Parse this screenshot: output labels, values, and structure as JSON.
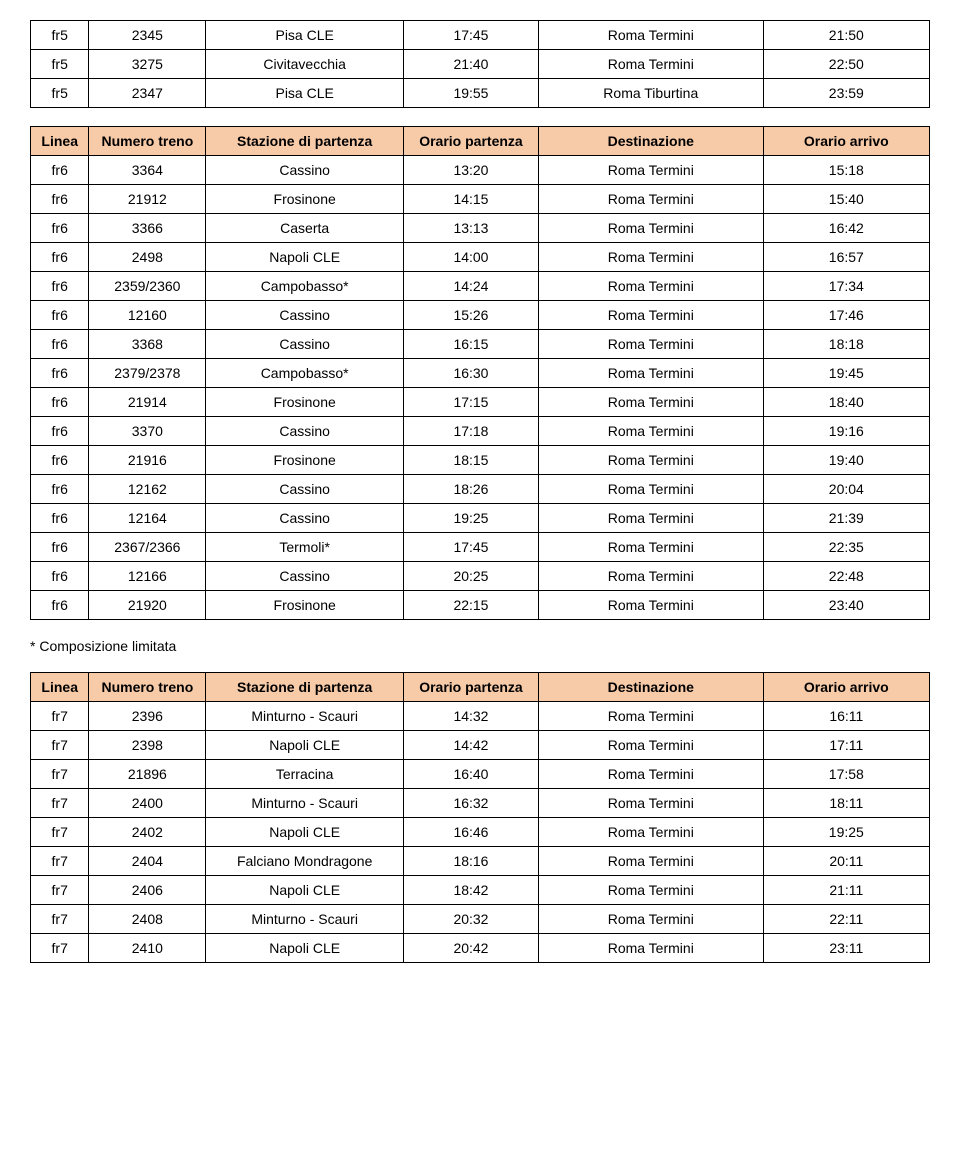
{
  "headers": {
    "linea": "Linea",
    "numero": "Numero treno",
    "stazione": "Stazione di partenza",
    "orario_partenza": "Orario partenza",
    "destinazione": "Destinazione",
    "orario_arrivo": "Orario arrivo"
  },
  "footnote": "* Composizione limitata",
  "colors": {
    "header_bg": "#f7caa8",
    "border": "#000000",
    "text": "#000000",
    "background": "#ffffff"
  },
  "table1_rows": [
    [
      "fr5",
      "2345",
      "Pisa CLE",
      "17:45",
      "Roma Termini",
      "21:50"
    ],
    [
      "fr5",
      "3275",
      "Civitavecchia",
      "21:40",
      "Roma Termini",
      "22:50"
    ],
    [
      "fr5",
      "2347",
      "Pisa CLE",
      "19:55",
      "Roma Tiburtina",
      "23:59"
    ]
  ],
  "table2_rows": [
    [
      "fr6",
      "3364",
      "Cassino",
      "13:20",
      "Roma Termini",
      "15:18"
    ],
    [
      "fr6",
      "21912",
      "Frosinone",
      "14:15",
      "Roma Termini",
      "15:40"
    ],
    [
      "fr6",
      "3366",
      "Caserta",
      "13:13",
      "Roma Termini",
      "16:42"
    ],
    [
      "fr6",
      "2498",
      "Napoli CLE",
      "14:00",
      "Roma Termini",
      "16:57"
    ],
    [
      "fr6",
      "2359/2360",
      "Campobasso*",
      "14:24",
      "Roma Termini",
      "17:34"
    ],
    [
      "fr6",
      "12160",
      "Cassino",
      "15:26",
      "Roma Termini",
      "17:46"
    ],
    [
      "fr6",
      "3368",
      "Cassino",
      "16:15",
      "Roma Termini",
      "18:18"
    ],
    [
      "fr6",
      "2379/2378",
      "Campobasso*",
      "16:30",
      "Roma Termini",
      "19:45"
    ],
    [
      "fr6",
      "21914",
      "Frosinone",
      "17:15",
      "Roma Termini",
      "18:40"
    ],
    [
      "fr6",
      "3370",
      "Cassino",
      "17:18",
      "Roma Termini",
      "19:16"
    ],
    [
      "fr6",
      "21916",
      "Frosinone",
      "18:15",
      "Roma Termini",
      "19:40"
    ],
    [
      "fr6",
      "12162",
      "Cassino",
      "18:26",
      "Roma Termini",
      "20:04"
    ],
    [
      "fr6",
      "12164",
      "Cassino",
      "19:25",
      "Roma Termini",
      "21:39"
    ],
    [
      "fr6",
      "2367/2366",
      "Termoli*",
      "17:45",
      "Roma Termini",
      "22:35"
    ],
    [
      "fr6",
      "12166",
      "Cassino",
      "20:25",
      "Roma Termini",
      "22:48"
    ],
    [
      "fr6",
      "21920",
      "Frosinone",
      "22:15",
      "Roma Termini",
      "23:40"
    ]
  ],
  "table3_rows": [
    [
      "fr7",
      "2396",
      "Minturno - Scauri",
      "14:32",
      "Roma Termini",
      "16:11"
    ],
    [
      "fr7",
      "2398",
      "Napoli CLE",
      "14:42",
      "Roma Termini",
      "17:11"
    ],
    [
      "fr7",
      "21896",
      "Terracina",
      "16:40",
      "Roma Termini",
      "17:58"
    ],
    [
      "fr7",
      "2400",
      "Minturno - Scauri",
      "16:32",
      "Roma Termini",
      "18:11"
    ],
    [
      "fr7",
      "2402",
      "Napoli CLE",
      "16:46",
      "Roma Termini",
      "19:25"
    ],
    [
      "fr7",
      "2404",
      "Falciano Mondragone",
      "18:16",
      "Roma Termini",
      "20:11"
    ],
    [
      "fr7",
      "2406",
      "Napoli CLE",
      "18:42",
      "Roma Termini",
      "21:11"
    ],
    [
      "fr7",
      "2408",
      "Minturno - Scauri",
      "20:32",
      "Roma Termini",
      "22:11"
    ],
    [
      "fr7",
      "2410",
      "Napoli CLE",
      "20:42",
      "Roma Termini",
      "23:11"
    ]
  ]
}
